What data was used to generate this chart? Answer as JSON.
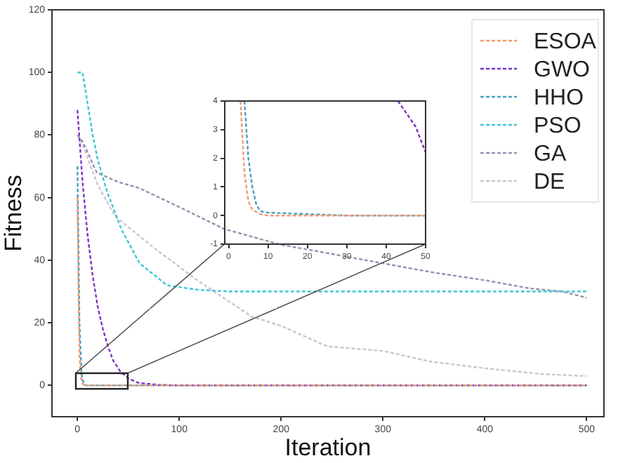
{
  "chart_data": [
    {
      "type": "line",
      "xlabel": "Iteration",
      "ylabel": "Fitness",
      "xlim": [
        -25,
        517
      ],
      "ylim": [
        -10,
        120
      ],
      "xticks": [
        0,
        100,
        200,
        300,
        400,
        500
      ],
      "yticks": [
        0,
        20,
        40,
        60,
        80,
        100,
        120
      ],
      "grid": false,
      "legend": "top right",
      "marker": "none",
      "line_style": "dashed",
      "series": [
        {
          "name": "ESOA",
          "color": "#f29a6e",
          "x": [
            0,
            1,
            2,
            3,
            4,
            5,
            6,
            8,
            10,
            20,
            500
          ],
          "values": [
            60,
            30,
            10,
            4,
            1.5,
            0.5,
            0.2,
            0,
            0,
            0,
            0
          ]
        },
        {
          "name": "GWO",
          "color": "#7b35c4",
          "x": [
            0,
            5,
            10,
            15,
            20,
            25,
            30,
            35,
            40,
            43,
            47.5,
            50,
            60,
            80,
            100,
            500
          ],
          "values": [
            88,
            65,
            48,
            35,
            25,
            18,
            12.5,
            8,
            5.5,
            4,
            3.1,
            2.2,
            0.8,
            0.2,
            0,
            0
          ]
        },
        {
          "name": "HHO",
          "color": "#4a9ec4",
          "x": [
            0,
            2,
            4,
            5,
            6,
            7,
            8,
            10,
            20,
            30,
            500
          ],
          "values": [
            70,
            20,
            4,
            2,
            1,
            0.4,
            0,
            0,
            0,
            0,
            0
          ]
        },
        {
          "name": "PSO",
          "color": "#3cc8d4",
          "x": [
            0,
            5,
            10,
            15,
            20,
            29,
            43,
            61,
            88,
            120,
            150,
            500
          ],
          "values": [
            100,
            100,
            90,
            80,
            72,
            62,
            50,
            39,
            32,
            30.5,
            30,
            30
          ]
        },
        {
          "name": "GA",
          "color": "#9a8fb2",
          "x": [
            0,
            5,
            19,
            40,
            61,
            100,
            144,
            199,
            250,
            300,
            351,
            402,
            444,
            476,
            500
          ],
          "values": [
            80,
            78,
            68,
            65,
            63,
            57,
            50,
            45,
            42,
            39,
            36,
            33.5,
            31,
            30,
            28
          ]
        },
        {
          "name": "DE",
          "color": "#d3bfd6",
          "x": [
            0,
            5,
            20,
            37,
            75,
            116,
            171,
            200,
            245,
            300,
            347,
            402,
            457,
            500
          ],
          "values": [
            80,
            77,
            64,
            54,
            44,
            34,
            22,
            19,
            12.5,
            11,
            7.6,
            5.4,
            3.6,
            3
          ]
        }
      ]
    },
    {
      "type": "line",
      "xlim": [
        -1,
        50
      ],
      "ylim": [
        -1,
        4
      ],
      "xticks": [
        0,
        10,
        20,
        30,
        40,
        50
      ],
      "yticks": [
        -1,
        0,
        1,
        2,
        3,
        4
      ],
      "grid": false,
      "marker": "none",
      "line_style": "dashed",
      "series": [
        {
          "color": "#f29a6e",
          "x": [
            3,
            4,
            5,
            6,
            8,
            10,
            20,
            30,
            40,
            50
          ],
          "values": [
            4,
            1.5,
            0.5,
            0.2,
            0.05,
            0,
            0,
            0,
            0,
            0
          ]
        },
        {
          "color": "#4a9ec4",
          "x": [
            4,
            5,
            6,
            7,
            8,
            10,
            20,
            30,
            40,
            50
          ],
          "values": [
            4,
            2,
            1,
            0.4,
            0.15,
            0.1,
            0.05,
            0,
            0,
            0
          ]
        },
        {
          "color": "#7b35c4",
          "x": [
            43,
            47.5,
            50
          ],
          "values": [
            4,
            3.1,
            2.2
          ]
        }
      ]
    }
  ]
}
